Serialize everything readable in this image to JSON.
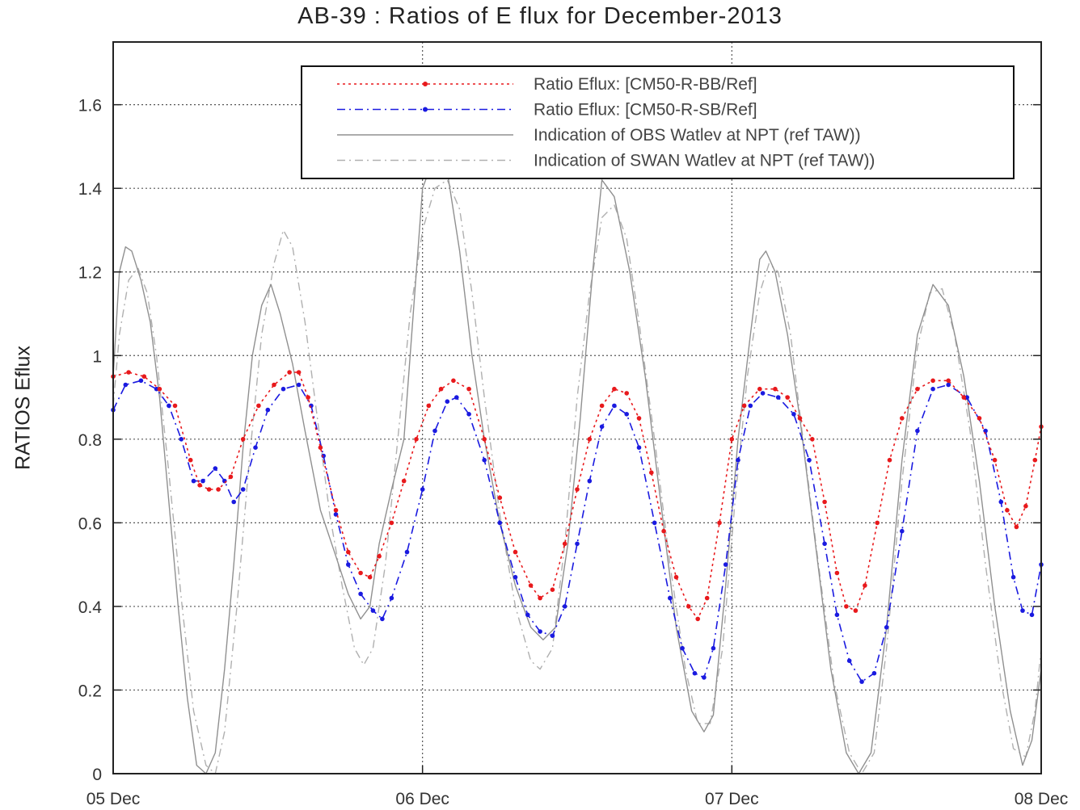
{
  "chart_data": {
    "type": "line",
    "title": "AB-39 : Ratios of E flux for December-2013",
    "xlabel": "",
    "ylabel": "RATIOS Eflux",
    "xlim": [
      0,
      3
    ],
    "ylim": [
      0,
      1.75
    ],
    "x_ticks": [
      {
        "value": 0,
        "label": "05 Dec"
      },
      {
        "value": 1,
        "label": "06 Dec"
      },
      {
        "value": 2,
        "label": "07 Dec"
      },
      {
        "value": 3,
        "label": "08 Dec"
      }
    ],
    "y_ticks": [
      {
        "value": 0,
        "label": "0"
      },
      {
        "value": 0.2,
        "label": "0.2"
      },
      {
        "value": 0.4,
        "label": "0.4"
      },
      {
        "value": 0.6,
        "label": "0.6"
      },
      {
        "value": 0.8,
        "label": "0.8"
      },
      {
        "value": 1,
        "label": "1"
      },
      {
        "value": 1.2,
        "label": "1.2"
      },
      {
        "value": 1.4,
        "label": "1.4"
      },
      {
        "value": 1.6,
        "label": "1.6"
      }
    ],
    "grid": true,
    "legend_position": "top-right",
    "series": [
      {
        "name": "Ratio Eflux: [CM50-R-BB/Ref]",
        "color": "#e8191c",
        "style": "dotted",
        "marker": "dot",
        "points": [
          [
            0,
            0.95
          ],
          [
            0.05,
            0.96
          ],
          [
            0.1,
            0.95
          ],
          [
            0.15,
            0.92
          ],
          [
            0.2,
            0.88
          ],
          [
            0.25,
            0.75
          ],
          [
            0.28,
            0.69
          ],
          [
            0.31,
            0.68
          ],
          [
            0.34,
            0.68
          ],
          [
            0.38,
            0.71
          ],
          [
            0.42,
            0.8
          ],
          [
            0.47,
            0.88
          ],
          [
            0.52,
            0.93
          ],
          [
            0.57,
            0.96
          ],
          [
            0.6,
            0.96
          ],
          [
            0.63,
            0.9
          ],
          [
            0.67,
            0.78
          ],
          [
            0.72,
            0.63
          ],
          [
            0.76,
            0.53
          ],
          [
            0.8,
            0.48
          ],
          [
            0.83,
            0.47
          ],
          [
            0.86,
            0.52
          ],
          [
            0.9,
            0.6
          ],
          [
            0.94,
            0.7
          ],
          [
            0.98,
            0.8
          ],
          [
            1.02,
            0.88
          ],
          [
            1.06,
            0.92
          ],
          [
            1.1,
            0.94
          ],
          [
            1.15,
            0.92
          ],
          [
            1.2,
            0.8
          ],
          [
            1.25,
            0.66
          ],
          [
            1.3,
            0.53
          ],
          [
            1.35,
            0.45
          ],
          [
            1.38,
            0.42
          ],
          [
            1.42,
            0.44
          ],
          [
            1.46,
            0.55
          ],
          [
            1.5,
            0.68
          ],
          [
            1.54,
            0.8
          ],
          [
            1.58,
            0.88
          ],
          [
            1.62,
            0.92
          ],
          [
            1.66,
            0.91
          ],
          [
            1.7,
            0.85
          ],
          [
            1.74,
            0.72
          ],
          [
            1.78,
            0.58
          ],
          [
            1.82,
            0.47
          ],
          [
            1.86,
            0.4
          ],
          [
            1.89,
            0.37
          ],
          [
            1.92,
            0.42
          ],
          [
            1.96,
            0.6
          ],
          [
            2.0,
            0.8
          ],
          [
            2.04,
            0.88
          ],
          [
            2.09,
            0.92
          ],
          [
            2.14,
            0.92
          ],
          [
            2.18,
            0.9
          ],
          [
            2.22,
            0.85
          ],
          [
            2.26,
            0.8
          ],
          [
            2.3,
            0.65
          ],
          [
            2.34,
            0.48
          ],
          [
            2.37,
            0.4
          ],
          [
            2.4,
            0.39
          ],
          [
            2.43,
            0.45
          ],
          [
            2.47,
            0.6
          ],
          [
            2.51,
            0.75
          ],
          [
            2.55,
            0.85
          ],
          [
            2.6,
            0.92
          ],
          [
            2.65,
            0.94
          ],
          [
            2.7,
            0.94
          ],
          [
            2.75,
            0.9
          ],
          [
            2.8,
            0.85
          ],
          [
            2.85,
            0.75
          ],
          [
            2.89,
            0.63
          ],
          [
            2.92,
            0.59
          ],
          [
            2.95,
            0.64
          ],
          [
            2.98,
            0.75
          ],
          [
            3.0,
            0.83
          ]
        ]
      },
      {
        "name": "Ratio Eflux: [CM50-R-SB/Ref]",
        "color": "#1a1ae0",
        "style": "dash-dot",
        "marker": "dot",
        "points": [
          [
            0,
            0.87
          ],
          [
            0.04,
            0.93
          ],
          [
            0.09,
            0.94
          ],
          [
            0.14,
            0.92
          ],
          [
            0.18,
            0.88
          ],
          [
            0.22,
            0.8
          ],
          [
            0.26,
            0.7
          ],
          [
            0.29,
            0.7
          ],
          [
            0.33,
            0.73
          ],
          [
            0.36,
            0.7
          ],
          [
            0.39,
            0.65
          ],
          [
            0.42,
            0.68
          ],
          [
            0.46,
            0.78
          ],
          [
            0.5,
            0.87
          ],
          [
            0.55,
            0.92
          ],
          [
            0.6,
            0.93
          ],
          [
            0.64,
            0.88
          ],
          [
            0.68,
            0.76
          ],
          [
            0.72,
            0.62
          ],
          [
            0.76,
            0.5
          ],
          [
            0.8,
            0.43
          ],
          [
            0.84,
            0.39
          ],
          [
            0.87,
            0.37
          ],
          [
            0.9,
            0.42
          ],
          [
            0.95,
            0.53
          ],
          [
            1.0,
            0.68
          ],
          [
            1.04,
            0.82
          ],
          [
            1.08,
            0.89
          ],
          [
            1.11,
            0.9
          ],
          [
            1.15,
            0.86
          ],
          [
            1.2,
            0.75
          ],
          [
            1.25,
            0.6
          ],
          [
            1.3,
            0.47
          ],
          [
            1.34,
            0.38
          ],
          [
            1.38,
            0.34
          ],
          [
            1.42,
            0.33
          ],
          [
            1.46,
            0.4
          ],
          [
            1.5,
            0.55
          ],
          [
            1.54,
            0.7
          ],
          [
            1.58,
            0.83
          ],
          [
            1.62,
            0.88
          ],
          [
            1.66,
            0.86
          ],
          [
            1.7,
            0.78
          ],
          [
            1.75,
            0.6
          ],
          [
            1.8,
            0.42
          ],
          [
            1.84,
            0.3
          ],
          [
            1.88,
            0.24
          ],
          [
            1.91,
            0.23
          ],
          [
            1.94,
            0.3
          ],
          [
            1.98,
            0.5
          ],
          [
            2.02,
            0.75
          ],
          [
            2.06,
            0.88
          ],
          [
            2.1,
            0.91
          ],
          [
            2.15,
            0.9
          ],
          [
            2.2,
            0.86
          ],
          [
            2.25,
            0.75
          ],
          [
            2.3,
            0.55
          ],
          [
            2.34,
            0.38
          ],
          [
            2.38,
            0.27
          ],
          [
            2.42,
            0.22
          ],
          [
            2.46,
            0.24
          ],
          [
            2.5,
            0.35
          ],
          [
            2.55,
            0.58
          ],
          [
            2.6,
            0.82
          ],
          [
            2.65,
            0.92
          ],
          [
            2.7,
            0.93
          ],
          [
            2.76,
            0.9
          ],
          [
            2.82,
            0.82
          ],
          [
            2.87,
            0.65
          ],
          [
            2.91,
            0.47
          ],
          [
            2.94,
            0.39
          ],
          [
            2.97,
            0.38
          ],
          [
            3.0,
            0.5
          ]
        ]
      },
      {
        "name": "Indication of OBS Watlev at NPT (ref TAW))",
        "color": "#909090",
        "style": "solid",
        "marker": "none",
        "points": [
          [
            0,
            0.95
          ],
          [
            0.02,
            1.2
          ],
          [
            0.04,
            1.26
          ],
          [
            0.06,
            1.25
          ],
          [
            0.09,
            1.18
          ],
          [
            0.12,
            1.08
          ],
          [
            0.15,
            0.9
          ],
          [
            0.18,
            0.65
          ],
          [
            0.21,
            0.4
          ],
          [
            0.24,
            0.18
          ],
          [
            0.27,
            0.02
          ],
          [
            0.3,
            0
          ],
          [
            0.33,
            0.05
          ],
          [
            0.36,
            0.25
          ],
          [
            0.39,
            0.5
          ],
          [
            0.42,
            0.78
          ],
          [
            0.45,
            1.0
          ],
          [
            0.48,
            1.12
          ],
          [
            0.51,
            1.17
          ],
          [
            0.54,
            1.1
          ],
          [
            0.58,
            0.98
          ],
          [
            0.62,
            0.82
          ],
          [
            0.67,
            0.63
          ],
          [
            0.72,
            0.52
          ],
          [
            0.76,
            0.43
          ],
          [
            0.8,
            0.37
          ],
          [
            0.83,
            0.4
          ],
          [
            0.86,
            0.55
          ],
          [
            0.9,
            0.68
          ],
          [
            0.94,
            0.8
          ],
          [
            0.97,
            1.1
          ],
          [
            1.0,
            1.4
          ],
          [
            1.04,
            1.48
          ],
          [
            1.08,
            1.44
          ],
          [
            1.12,
            1.25
          ],
          [
            1.16,
            1.0
          ],
          [
            1.2,
            0.8
          ],
          [
            1.25,
            0.6
          ],
          [
            1.3,
            0.45
          ],
          [
            1.35,
            0.35
          ],
          [
            1.39,
            0.32
          ],
          [
            1.43,
            0.35
          ],
          [
            1.47,
            0.55
          ],
          [
            1.51,
            0.85
          ],
          [
            1.55,
            1.2
          ],
          [
            1.58,
            1.42
          ],
          [
            1.62,
            1.38
          ],
          [
            1.67,
            1.2
          ],
          [
            1.72,
            0.95
          ],
          [
            1.77,
            0.65
          ],
          [
            1.82,
            0.35
          ],
          [
            1.87,
            0.15
          ],
          [
            1.91,
            0.1
          ],
          [
            1.94,
            0.14
          ],
          [
            1.98,
            0.45
          ],
          [
            2.02,
            0.8
          ],
          [
            2.06,
            1.05
          ],
          [
            2.09,
            1.23
          ],
          [
            2.11,
            1.25
          ],
          [
            2.14,
            1.2
          ],
          [
            2.18,
            1.05
          ],
          [
            2.22,
            0.85
          ],
          [
            2.27,
            0.55
          ],
          [
            2.32,
            0.25
          ],
          [
            2.37,
            0.05
          ],
          [
            2.41,
            0
          ],
          [
            2.45,
            0.05
          ],
          [
            2.5,
            0.35
          ],
          [
            2.55,
            0.75
          ],
          [
            2.6,
            1.05
          ],
          [
            2.65,
            1.17
          ],
          [
            2.7,
            1.12
          ],
          [
            2.75,
            0.95
          ],
          [
            2.8,
            0.7
          ],
          [
            2.85,
            0.4
          ],
          [
            2.9,
            0.15
          ],
          [
            2.94,
            0.02
          ],
          [
            2.97,
            0.08
          ],
          [
            3.0,
            0.25
          ]
        ]
      },
      {
        "name": "Indication of SWAN Watlev at NPT (ref TAW))",
        "color": "#b0b0b0",
        "style": "dash-dot",
        "marker": "none",
        "points": [
          [
            0,
            0.88
          ],
          [
            0.02,
            1.05
          ],
          [
            0.05,
            1.18
          ],
          [
            0.08,
            1.21
          ],
          [
            0.11,
            1.15
          ],
          [
            0.14,
            1.0
          ],
          [
            0.18,
            0.72
          ],
          [
            0.22,
            0.42
          ],
          [
            0.26,
            0.15
          ],
          [
            0.3,
            0.02
          ],
          [
            0.33,
            0
          ],
          [
            0.36,
            0.1
          ],
          [
            0.4,
            0.4
          ],
          [
            0.44,
            0.75
          ],
          [
            0.48,
            1.05
          ],
          [
            0.52,
            1.22
          ],
          [
            0.55,
            1.3
          ],
          [
            0.58,
            1.26
          ],
          [
            0.62,
            1.08
          ],
          [
            0.66,
            0.85
          ],
          [
            0.7,
            0.62
          ],
          [
            0.74,
            0.45
          ],
          [
            0.78,
            0.3
          ],
          [
            0.81,
            0.26
          ],
          [
            0.84,
            0.3
          ],
          [
            0.88,
            0.5
          ],
          [
            0.92,
            0.8
          ],
          [
            0.96,
            1.1
          ],
          [
            1.0,
            1.3
          ],
          [
            1.04,
            1.4
          ],
          [
            1.08,
            1.42
          ],
          [
            1.12,
            1.35
          ],
          [
            1.16,
            1.15
          ],
          [
            1.2,
            0.9
          ],
          [
            1.25,
            0.62
          ],
          [
            1.3,
            0.4
          ],
          [
            1.35,
            0.27
          ],
          [
            1.38,
            0.25
          ],
          [
            1.42,
            0.3
          ],
          [
            1.46,
            0.55
          ],
          [
            1.5,
            0.9
          ],
          [
            1.54,
            1.15
          ],
          [
            1.58,
            1.33
          ],
          [
            1.62,
            1.36
          ],
          [
            1.66,
            1.28
          ],
          [
            1.7,
            1.08
          ],
          [
            1.75,
            0.8
          ],
          [
            1.8,
            0.5
          ],
          [
            1.85,
            0.25
          ],
          [
            1.89,
            0.12
          ],
          [
            1.93,
            0.12
          ],
          [
            1.97,
            0.3
          ],
          [
            2.01,
            0.65
          ],
          [
            2.05,
            0.95
          ],
          [
            2.09,
            1.15
          ],
          [
            2.12,
            1.22
          ],
          [
            2.15,
            1.2
          ],
          [
            2.19,
            1.05
          ],
          [
            2.23,
            0.8
          ],
          [
            2.28,
            0.5
          ],
          [
            2.33,
            0.22
          ],
          [
            2.38,
            0.05
          ],
          [
            2.42,
            0
          ],
          [
            2.46,
            0.05
          ],
          [
            2.5,
            0.3
          ],
          [
            2.55,
            0.7
          ],
          [
            2.6,
            1.02
          ],
          [
            2.64,
            1.15
          ],
          [
            2.68,
            1.16
          ],
          [
            2.72,
            1.05
          ],
          [
            2.77,
            0.82
          ],
          [
            2.82,
            0.5
          ],
          [
            2.87,
            0.22
          ],
          [
            2.91,
            0.06
          ],
          [
            2.95,
            0.04
          ],
          [
            2.98,
            0.15
          ],
          [
            3.0,
            0.3
          ]
        ]
      }
    ]
  }
}
